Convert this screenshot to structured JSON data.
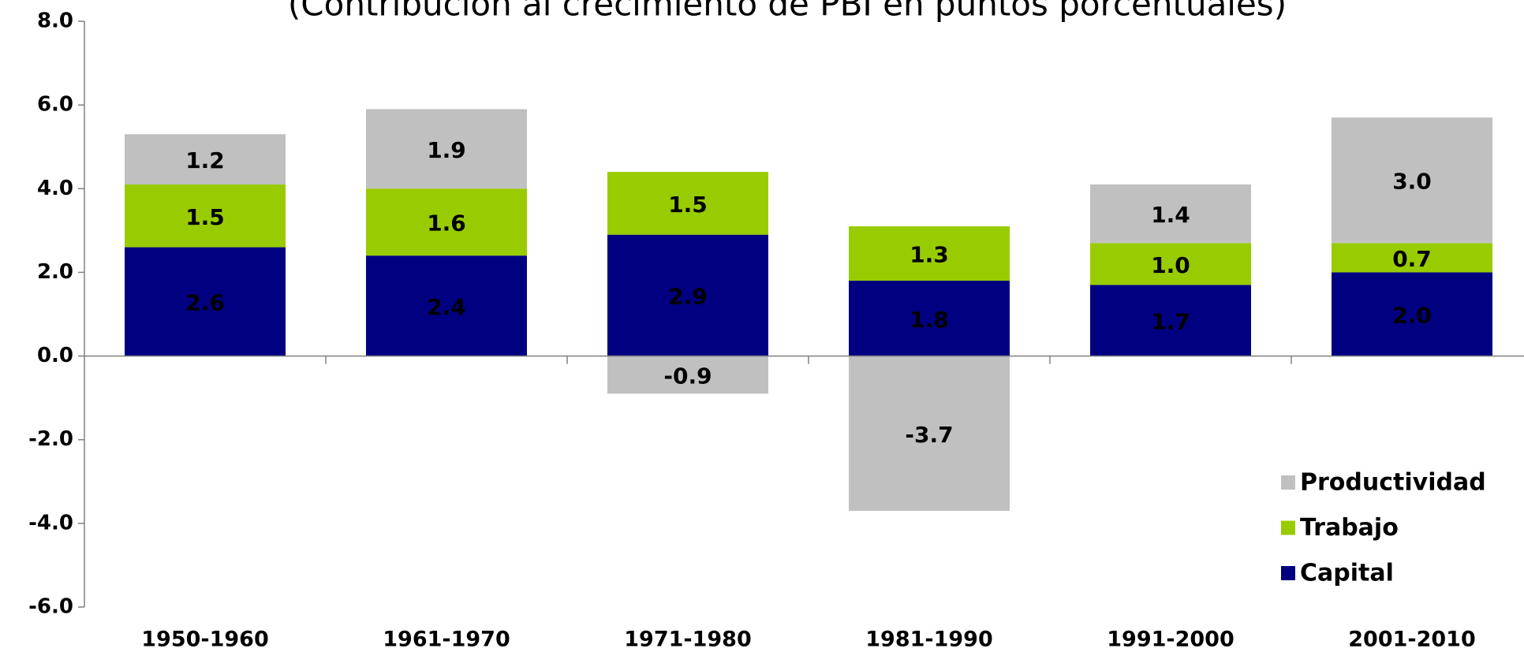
{
  "chart_data": {
    "type": "stacked_bar",
    "title": "(Contribución al crecimiento de PBI en puntos porcentuales)",
    "categories": [
      "1950-1960",
      "1961-1970",
      "1971-1980",
      "1981-1990",
      "1991-2000",
      "2001-2010"
    ],
    "series": [
      {
        "name": "Capital",
        "color": "#000080",
        "values": [
          2.6,
          2.4,
          2.9,
          1.8,
          1.7,
          2.0
        ],
        "value_labels": [
          "2.6",
          "2.4",
          "2.9",
          "1.8",
          "1.7",
          "2.0"
        ]
      },
      {
        "name": "Trabajo",
        "color": "#99cc00",
        "values": [
          1.5,
          1.6,
          1.5,
          1.3,
          1.0,
          0.7
        ],
        "value_labels": [
          "1.5",
          "1.6",
          "1.5",
          "1.3",
          "1.0",
          "0.7"
        ]
      },
      {
        "name": "Productividad",
        "color": "#c0c0c0",
        "values": [
          1.2,
          1.9,
          -0.9,
          -3.7,
          1.4,
          3.0
        ],
        "value_labels": [
          "1.2",
          "1.9",
          "-0.9",
          "-3.7",
          "1.4",
          "3.0"
        ]
      }
    ],
    "ylim": [
      -6,
      8
    ],
    "yticks": [
      {
        "value": -6,
        "label": "-6.0"
      },
      {
        "value": -4,
        "label": "-4.0"
      },
      {
        "value": -2,
        "label": "-2.0"
      },
      {
        "value": 0,
        "label": "0.0"
      },
      {
        "value": 2,
        "label": "2.0"
      },
      {
        "value": 4,
        "label": "4.0"
      },
      {
        "value": 6,
        "label": "6.0"
      },
      {
        "value": 8,
        "label": "8.0"
      }
    ],
    "legend": "bottom-right"
  }
}
